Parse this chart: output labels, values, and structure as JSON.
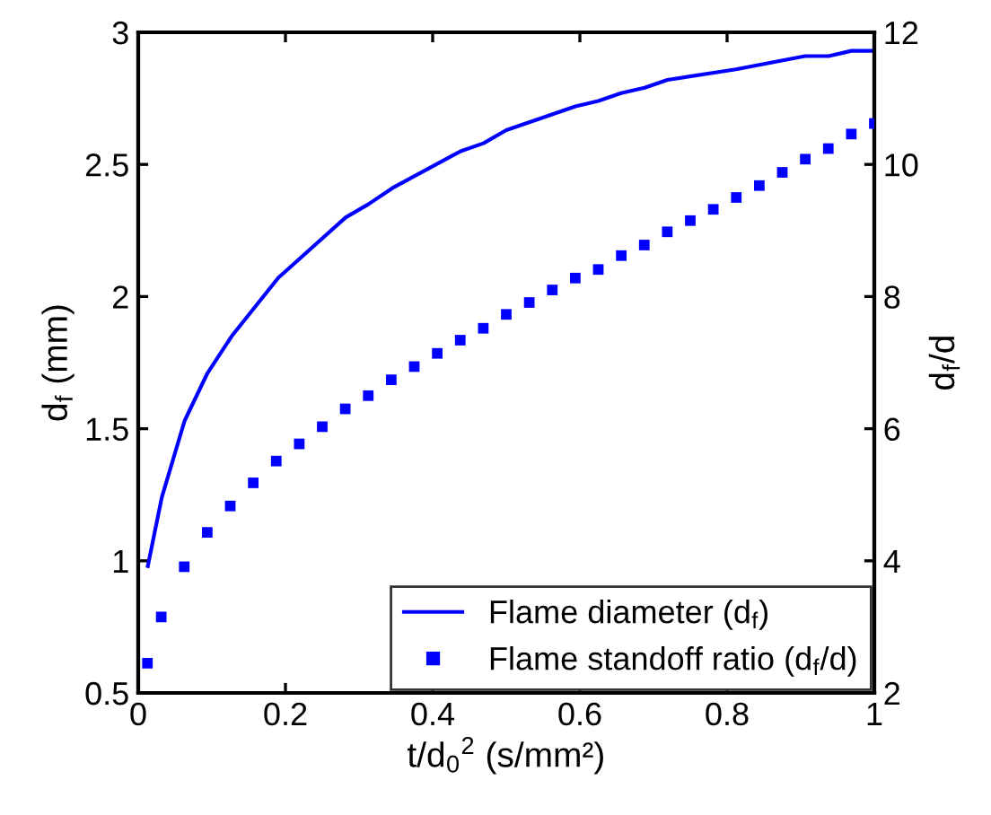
{
  "chart_data": {
    "type": "line",
    "xlabel": "t/d$_{0}$$^{2}$ (s/mm²)",
    "ylabel": "d$_{f}$ (mm)",
    "y2label": "d$_{f}$/d",
    "xlim": [
      0,
      1
    ],
    "xticks": [
      0,
      0.2,
      0.4,
      0.6,
      0.8,
      1
    ],
    "ylim": [
      0.5,
      3
    ],
    "yticks": [
      0.5,
      1,
      1.5,
      2,
      2.5,
      3
    ],
    "y2lim": [
      2,
      12
    ],
    "y2ticks": [
      2,
      4,
      6,
      8,
      10,
      12
    ],
    "legend": "bottom right",
    "grid": false,
    "series": [
      {
        "name": "Flame diameter (d$_{f}$)",
        "color": "#0000ff",
        "marker": "none",
        "line_style": "solid",
        "x": [
          0.013,
          0.032,
          0.063,
          0.094,
          0.127,
          0.19,
          0.282,
          0.313,
          0.345,
          0.438,
          0.469,
          0.5,
          0.594,
          0.625,
          0.656,
          0.688,
          0.719,
          0.812,
          0.906,
          0.938,
          0.969,
          1.0
        ],
        "values": [
          0.98,
          1.24,
          1.53,
          1.71,
          1.85,
          2.07,
          2.3,
          2.35,
          2.41,
          2.55,
          2.58,
          2.63,
          2.72,
          2.74,
          2.77,
          2.79,
          2.82,
          2.86,
          2.91,
          2.91,
          2.93,
          2.93
        ]
      },
      {
        "name": "Flame standoff ratio (d$_{f}$/d)",
        "type": "scatter",
        "axis": "y2",
        "color": "#0000ff",
        "marker": "square",
        "x": [
          0.0125,
          0.03125,
          0.0625,
          0.09375,
          0.125,
          0.15625,
          0.1875,
          0.21875,
          0.25,
          0.28125,
          0.3125,
          0.34375,
          0.375,
          0.40625,
          0.4375,
          0.46875,
          0.5,
          0.53125,
          0.5625,
          0.59375,
          0.625,
          0.65625,
          0.6875,
          0.71875,
          0.75,
          0.78125,
          0.8125,
          0.84375,
          0.875,
          0.90625,
          0.9375,
          0.96875,
          1.0
        ],
        "values": [
          2.45,
          3.15,
          3.91,
          4.43,
          4.83,
          5.18,
          5.51,
          5.77,
          6.03,
          6.3,
          6.5,
          6.74,
          6.94,
          7.14,
          7.34,
          7.52,
          7.73,
          7.91,
          8.1,
          8.28,
          8.41,
          8.62,
          8.78,
          8.98,
          9.15,
          9.32,
          9.5,
          9.68,
          9.88,
          10.08,
          10.24,
          10.46,
          10.62
        ]
      }
    ]
  }
}
